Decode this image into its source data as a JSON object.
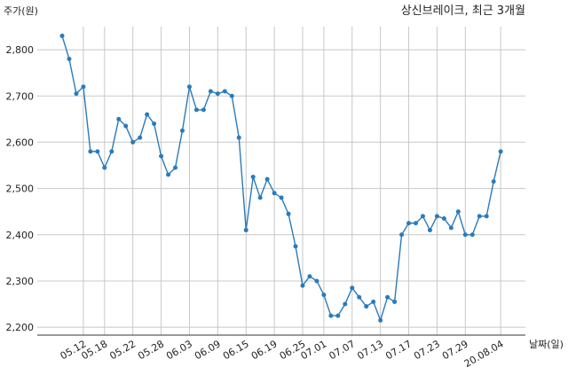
{
  "chart_data": {
    "type": "line",
    "title": "상신브레이크, 최근 3개월",
    "y_label": "주가(원)",
    "x_label": "날짜(일)",
    "categories": [
      null,
      null,
      null,
      "05.12",
      null,
      null,
      "05.18",
      null,
      null,
      null,
      "05.22",
      null,
      null,
      null,
      "05.28",
      null,
      null,
      null,
      "06.03",
      null,
      null,
      null,
      "06.09",
      null,
      null,
      null,
      "06.15",
      null,
      null,
      null,
      "06.19",
      null,
      null,
      null,
      "06.25",
      null,
      null,
      "07.01",
      null,
      null,
      null,
      "07.07",
      null,
      null,
      null,
      "07.13",
      null,
      null,
      null,
      "07.17",
      null,
      null,
      null,
      "07.23",
      null,
      null,
      null,
      "07.29",
      null,
      null,
      null,
      null,
      "20.08.04"
    ],
    "series": [
      {
        "name": "주가",
        "color": "#2b7bba",
        "values": [
          2830,
          2780,
          2705,
          2720,
          2580,
          2580,
          2545,
          2580,
          2650,
          2635,
          2600,
          2610,
          2660,
          2640,
          2570,
          2530,
          2545,
          2625,
          2720,
          2670,
          2670,
          2710,
          2705,
          2710,
          2700,
          2610,
          2410,
          2525,
          2480,
          2520,
          2490,
          2480,
          2445,
          2375,
          2290,
          2310,
          2300,
          2270,
          2225,
          2225,
          2250,
          2285,
          2265,
          2245,
          2255,
          2215,
          2265,
          2255,
          2400,
          2425,
          2425,
          2440,
          2410,
          2440,
          2435,
          2415,
          2450,
          2400,
          2400,
          2440,
          2440,
          2515,
          2580
        ]
      }
    ],
    "ylim": [
      2183,
      2850
    ],
    "yticks": [
      {
        "value": 2200,
        "label": "2,200"
      },
      {
        "value": 2300,
        "label": "2,300"
      },
      {
        "value": 2400,
        "label": "2,400"
      },
      {
        "value": 2500,
        "label": "2,500"
      },
      {
        "value": 2600,
        "label": "2,600"
      },
      {
        "value": 2700,
        "label": "2,700"
      },
      {
        "value": 2800,
        "label": "2,800"
      }
    ],
    "grid": true
  }
}
